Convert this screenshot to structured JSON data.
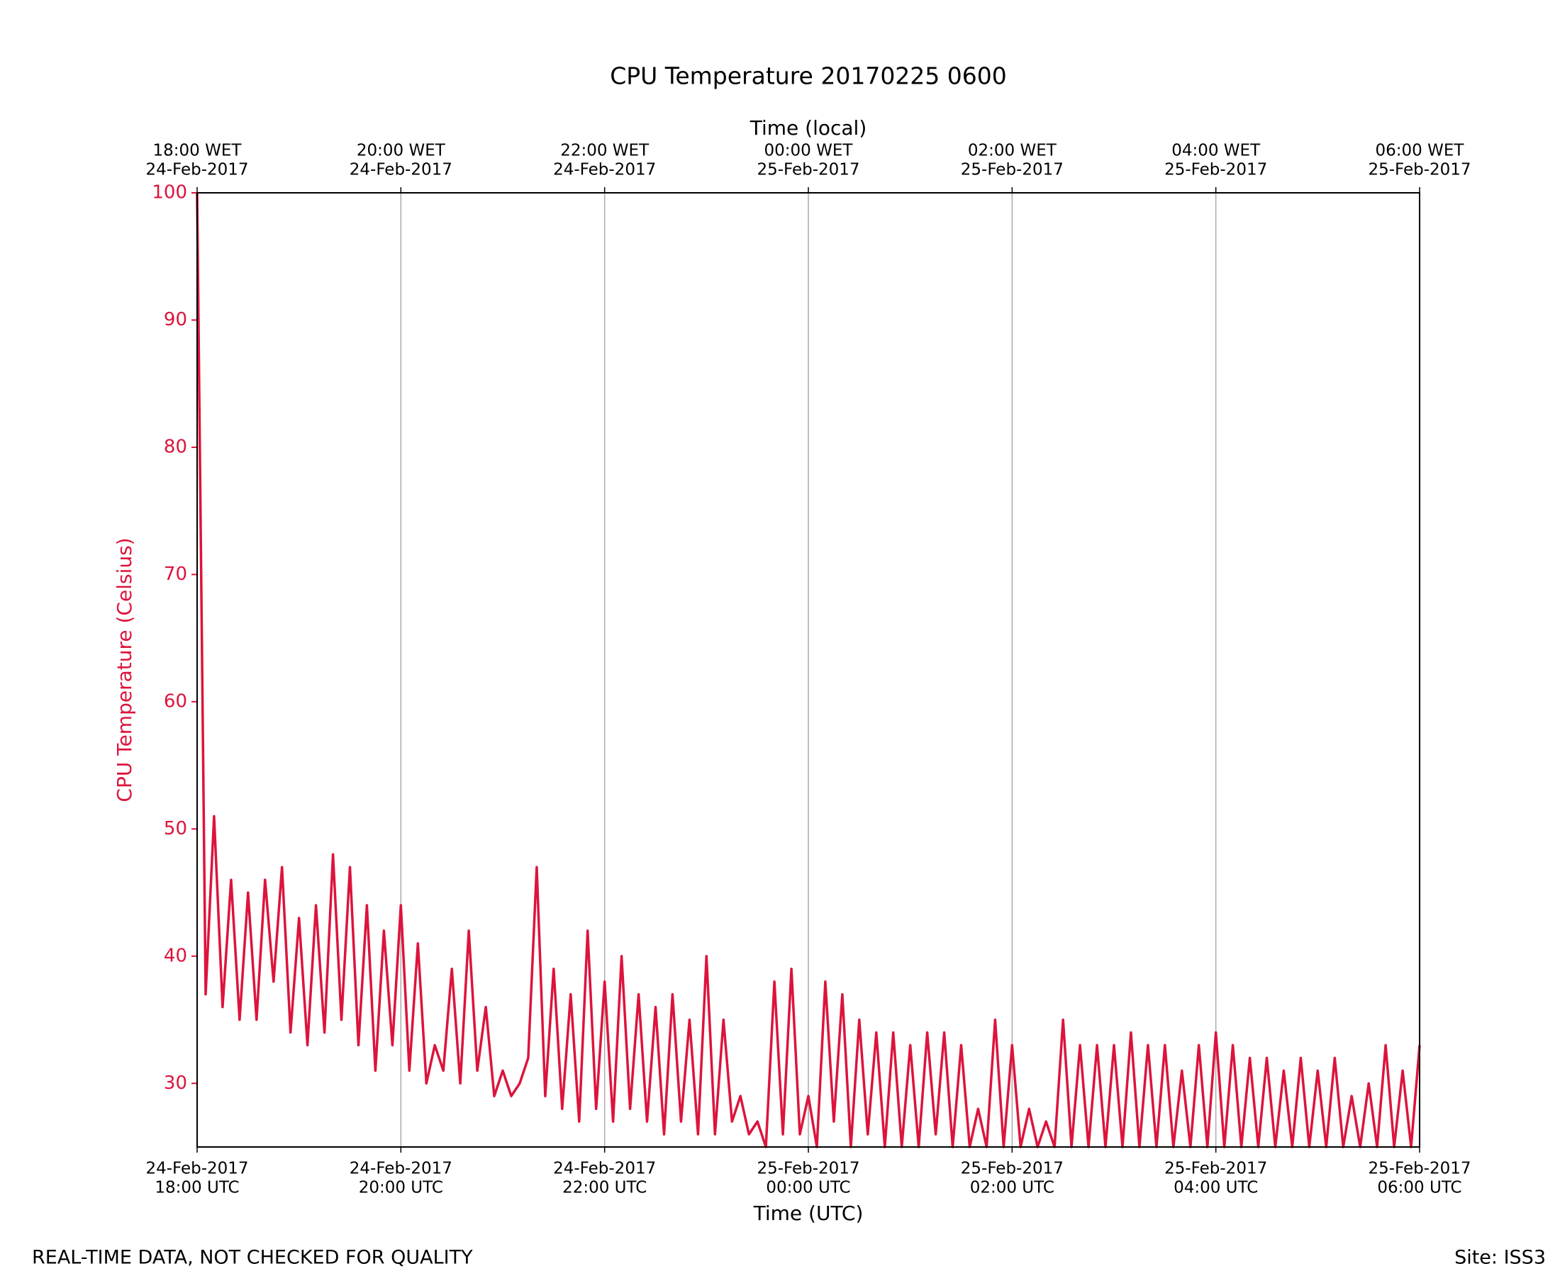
{
  "chart_data": {
    "type": "line",
    "title": "CPU Temperature 20170225 0600",
    "xlabel": "Time (UTC)",
    "x2label": "Time (local)",
    "ylabel": "CPU Temperature (Celsius)",
    "annotations": [
      "REAL-TIME DATA, NOT CHECKED FOR QUALITY",
      "Site: ISS3"
    ],
    "color": "#dc143c",
    "grid": true,
    "x": [
      "2017-02-24T18:00",
      "2017-02-24T18:05",
      "2017-02-24T18:10",
      "2017-02-24T18:15",
      "2017-02-24T18:20",
      "2017-02-24T18:25",
      "2017-02-24T18:30",
      "2017-02-24T18:35",
      "2017-02-24T18:40",
      "2017-02-24T18:45",
      "2017-02-24T18:50",
      "2017-02-24T18:55",
      "2017-02-24T19:00",
      "2017-02-24T19:05",
      "2017-02-24T19:10",
      "2017-02-24T19:15",
      "2017-02-24T19:20",
      "2017-02-24T19:25",
      "2017-02-24T19:30",
      "2017-02-24T19:35",
      "2017-02-24T19:40",
      "2017-02-24T19:45",
      "2017-02-24T19:50",
      "2017-02-24T19:55",
      "2017-02-24T20:00",
      "2017-02-24T20:05",
      "2017-02-24T20:10",
      "2017-02-24T20:15",
      "2017-02-24T20:20",
      "2017-02-24T20:25",
      "2017-02-24T20:30",
      "2017-02-24T20:35",
      "2017-02-24T20:40",
      "2017-02-24T20:45",
      "2017-02-24T20:50",
      "2017-02-24T20:55",
      "2017-02-24T21:00",
      "2017-02-24T21:05",
      "2017-02-24T21:10",
      "2017-02-24T21:15",
      "2017-02-24T21:20",
      "2017-02-24T21:25",
      "2017-02-24T21:30",
      "2017-02-24T21:35",
      "2017-02-24T21:40",
      "2017-02-24T21:45",
      "2017-02-24T21:50",
      "2017-02-24T21:55",
      "2017-02-24T22:00",
      "2017-02-24T22:05",
      "2017-02-24T22:10",
      "2017-02-24T22:15",
      "2017-02-24T22:20",
      "2017-02-24T22:25",
      "2017-02-24T22:30",
      "2017-02-24T22:35",
      "2017-02-24T22:40",
      "2017-02-24T22:45",
      "2017-02-24T22:50",
      "2017-02-24T22:55",
      "2017-02-24T23:00",
      "2017-02-24T23:05",
      "2017-02-24T23:10",
      "2017-02-24T23:15",
      "2017-02-24T23:20",
      "2017-02-24T23:25",
      "2017-02-24T23:30",
      "2017-02-24T23:35",
      "2017-02-24T23:40",
      "2017-02-24T23:45",
      "2017-02-24T23:50",
      "2017-02-24T23:55",
      "2017-02-25T00:00",
      "2017-02-25T00:05",
      "2017-02-25T00:10",
      "2017-02-25T00:15",
      "2017-02-25T00:20",
      "2017-02-25T00:25",
      "2017-02-25T00:30",
      "2017-02-25T00:35",
      "2017-02-25T00:40",
      "2017-02-25T00:45",
      "2017-02-25T00:50",
      "2017-02-25T00:55",
      "2017-02-25T01:00",
      "2017-02-25T01:05",
      "2017-02-25T01:10",
      "2017-02-25T01:15",
      "2017-02-25T01:20",
      "2017-02-25T01:25",
      "2017-02-25T01:30",
      "2017-02-25T01:35",
      "2017-02-25T01:40",
      "2017-02-25T01:45",
      "2017-02-25T01:50",
      "2017-02-25T01:55",
      "2017-02-25T02:00",
      "2017-02-25T02:05",
      "2017-02-25T02:10",
      "2017-02-25T02:15",
      "2017-02-25T02:20",
      "2017-02-25T02:25",
      "2017-02-25T02:30",
      "2017-02-25T02:35",
      "2017-02-25T02:40",
      "2017-02-25T02:45",
      "2017-02-25T02:50",
      "2017-02-25T02:55",
      "2017-02-25T03:00",
      "2017-02-25T03:05",
      "2017-02-25T03:10",
      "2017-02-25T03:15",
      "2017-02-25T03:20",
      "2017-02-25T03:25",
      "2017-02-25T03:30",
      "2017-02-25T03:35",
      "2017-02-25T03:40",
      "2017-02-25T03:45",
      "2017-02-25T03:50",
      "2017-02-25T03:55",
      "2017-02-25T04:00",
      "2017-02-25T04:05",
      "2017-02-25T04:10",
      "2017-02-25T04:15",
      "2017-02-25T04:20",
      "2017-02-25T04:25",
      "2017-02-25T04:30",
      "2017-02-25T04:35",
      "2017-02-25T04:40",
      "2017-02-25T04:45",
      "2017-02-25T04:50",
      "2017-02-25T04:55",
      "2017-02-25T05:00",
      "2017-02-25T05:05",
      "2017-02-25T05:10",
      "2017-02-25T05:15",
      "2017-02-25T05:20",
      "2017-02-25T05:25",
      "2017-02-25T05:30",
      "2017-02-25T05:35",
      "2017-02-25T05:40",
      "2017-02-25T05:45",
      "2017-02-25T05:50",
      "2017-02-25T05:55",
      "2017-02-25T06:00"
    ],
    "values": [
      100,
      37,
      51,
      36,
      46,
      35,
      45,
      35,
      46,
      38,
      47,
      34,
      43,
      33,
      44,
      34,
      48,
      35,
      47,
      33,
      44,
      31,
      42,
      33,
      44,
      31,
      41,
      30,
      33,
      31,
      39,
      30,
      42,
      31,
      36,
      29,
      31,
      29,
      30,
      32,
      47,
      29,
      39,
      28,
      37,
      27,
      42,
      28,
      38,
      27,
      40,
      28,
      37,
      27,
      36,
      26,
      37,
      27,
      35,
      26,
      40,
      26,
      35,
      27,
      29,
      26,
      27,
      25,
      38,
      26,
      39,
      26,
      29,
      25,
      38,
      27,
      37,
      25,
      35,
      26,
      34,
      25,
      34,
      25,
      33,
      25,
      34,
      26,
      34,
      25,
      33,
      25,
      28,
      25,
      35,
      25,
      33,
      25,
      28,
      25,
      27,
      25,
      35,
      25,
      33,
      25,
      33,
      25,
      33,
      25,
      34,
      25,
      33,
      25,
      33,
      25,
      31,
      25,
      33,
      25,
      34,
      25,
      33,
      25,
      32,
      25,
      32,
      25,
      31,
      25,
      32,
      25,
      31,
      25,
      32,
      25,
      29,
      25,
      30,
      25,
      33,
      25,
      31,
      25,
      33
    ],
    "xlim": [
      "2017-02-24T18:00",
      "2017-02-25T06:00"
    ],
    "xticks": [
      {
        "value": "2017-02-24T18:00",
        "label": [
          "24-Feb-2017",
          "18:00 UTC"
        ]
      },
      {
        "value": "2017-02-24T20:00",
        "label": [
          "24-Feb-2017",
          "20:00 UTC"
        ]
      },
      {
        "value": "2017-02-24T22:00",
        "label": [
          "24-Feb-2017",
          "22:00 UTC"
        ]
      },
      {
        "value": "2017-02-25T00:00",
        "label": [
          "25-Feb-2017",
          "00:00 UTC"
        ]
      },
      {
        "value": "2017-02-25T02:00",
        "label": [
          "25-Feb-2017",
          "02:00 UTC"
        ]
      },
      {
        "value": "2017-02-25T04:00",
        "label": [
          "25-Feb-2017",
          "04:00 UTC"
        ]
      },
      {
        "value": "2017-02-25T06:00",
        "label": [
          "25-Feb-2017",
          "06:00 UTC"
        ]
      }
    ],
    "x2ticks": [
      {
        "value": "2017-02-24T18:00",
        "label": [
          "18:00 WET",
          "24-Feb-2017"
        ]
      },
      {
        "value": "2017-02-24T20:00",
        "label": [
          "20:00 WET",
          "24-Feb-2017"
        ]
      },
      {
        "value": "2017-02-24T22:00",
        "label": [
          "22:00 WET",
          "24-Feb-2017"
        ]
      },
      {
        "value": "2017-02-25T00:00",
        "label": [
          "00:00 WET",
          "25-Feb-2017"
        ]
      },
      {
        "value": "2017-02-25T02:00",
        "label": [
          "02:00 WET",
          "25-Feb-2017"
        ]
      },
      {
        "value": "2017-02-25T04:00",
        "label": [
          "04:00 WET",
          "25-Feb-2017"
        ]
      },
      {
        "value": "2017-02-25T06:00",
        "label": [
          "06:00 WET",
          "25-Feb-2017"
        ]
      }
    ],
    "ylim": [
      25,
      100
    ],
    "yticks": [
      30,
      40,
      50,
      60,
      70,
      80,
      90,
      100
    ]
  }
}
